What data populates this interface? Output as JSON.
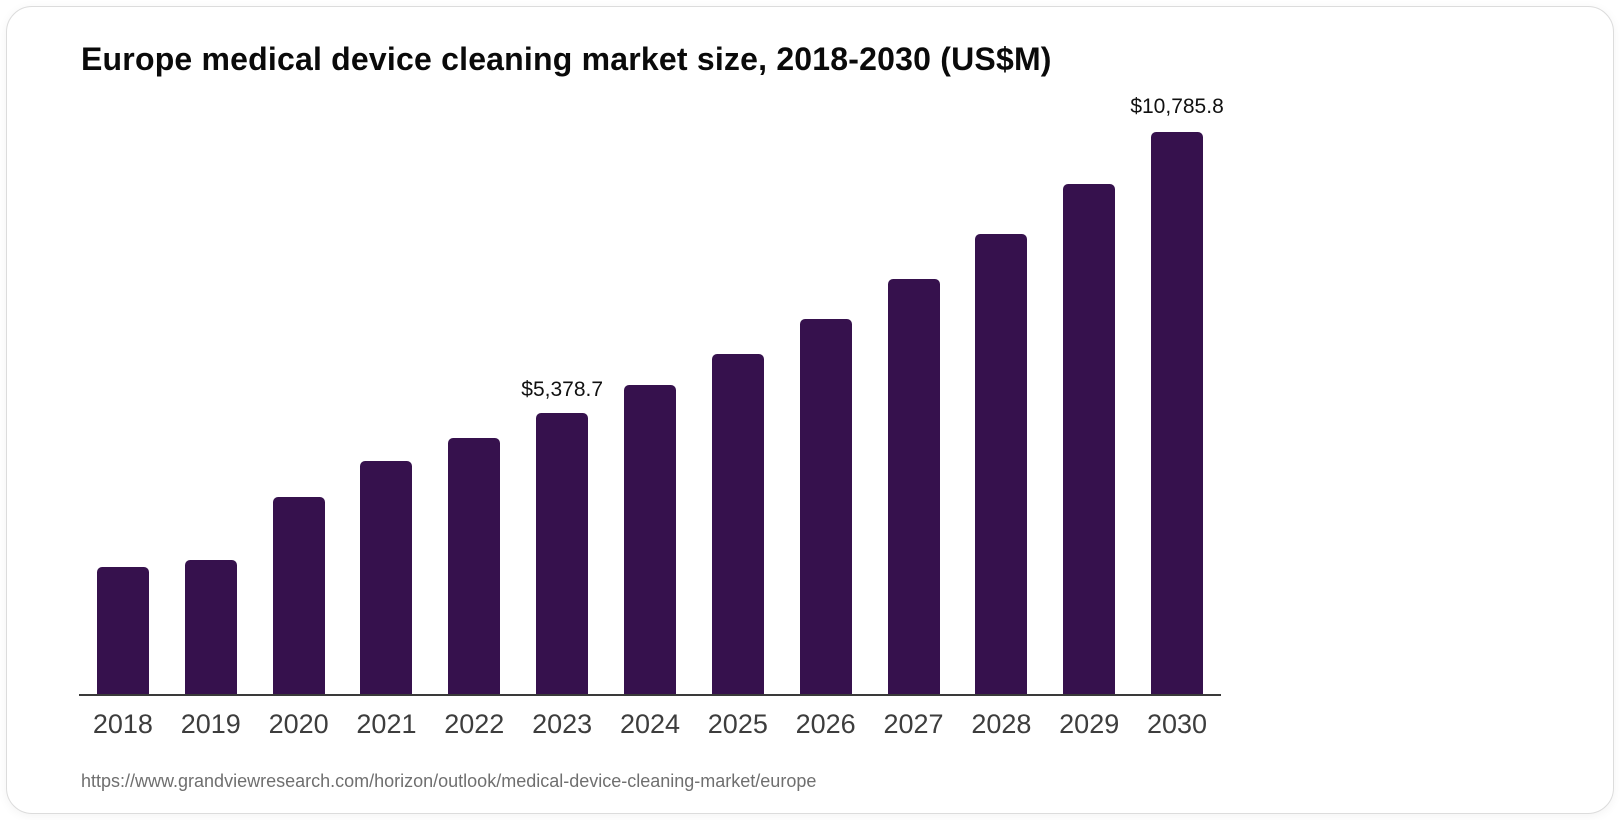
{
  "chart_data": {
    "type": "bar",
    "title": "Europe medical device cleaning market size, 2018-2030 (US$M)",
    "categories": [
      "2018",
      "2019",
      "2020",
      "2021",
      "2022",
      "2023",
      "2024",
      "2025",
      "2026",
      "2027",
      "2028",
      "2029",
      "2030"
    ],
    "values": [
      2420,
      2562,
      3775,
      4464,
      4899,
      5378.7,
      5915,
      6509,
      7179,
      7932,
      8794,
      9747,
      10785.8
    ],
    "data_labels": {
      "2023": "$5,378.7",
      "2030": "$10,785.8"
    },
    "xlabel": "",
    "ylabel": "",
    "ylim": [
      0,
      10785.8
    ],
    "grid": false,
    "legend": false,
    "bar_color": "#36114D",
    "axis_color": "#3a3a3a",
    "tick_color": "#3d3d3d",
    "value_label_color": "#111111"
  },
  "footer": {
    "source_url": "https://www.grandviewresearch.com/horizon/outlook/medical-device-cleaning-market/europe"
  }
}
